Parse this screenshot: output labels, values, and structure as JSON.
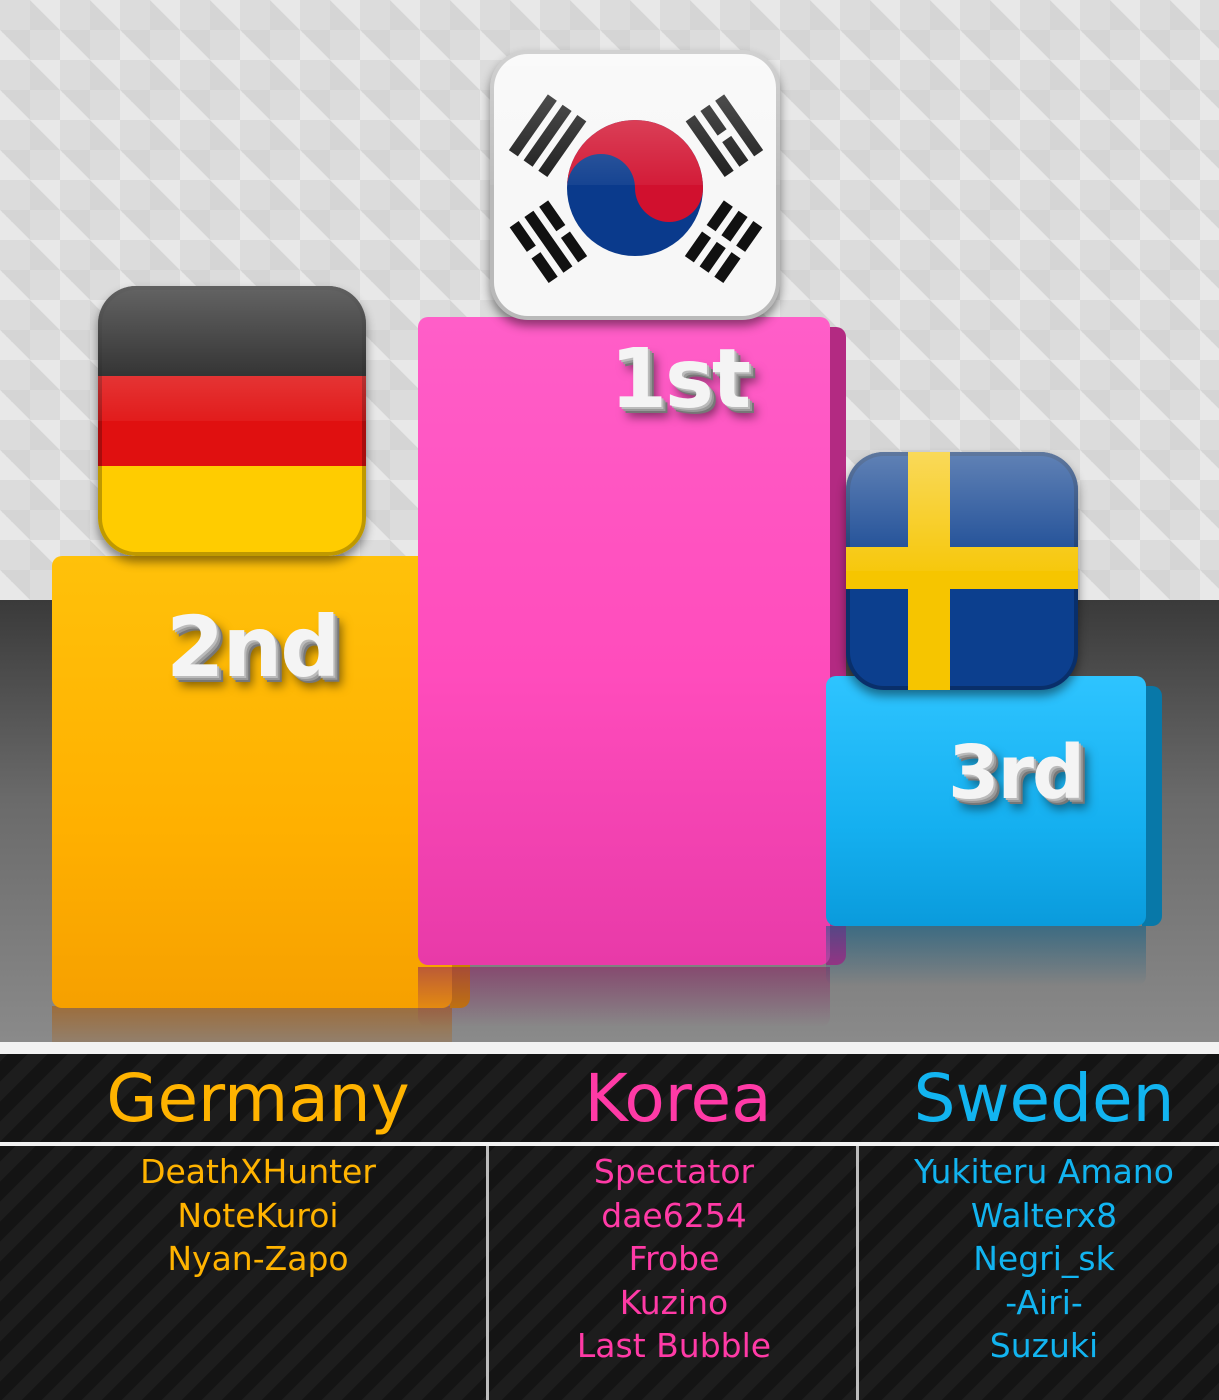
{
  "podium": {
    "first": {
      "label": "1st",
      "country": "Korea",
      "flag": "south-korea-flag-icon",
      "color": "#ff4cbc"
    },
    "second": {
      "label": "2nd",
      "country": "Germany",
      "flag": "germany-flag-icon",
      "color": "#ffb000"
    },
    "third": {
      "label": "3rd",
      "country": "Sweden",
      "flag": "sweden-flag-icon",
      "color": "#15b0f0"
    }
  },
  "teams": [
    {
      "name": "Germany",
      "color": "#ffb300",
      "members": [
        "DeathXHunter",
        "NoteKuroi",
        "Nyan-Zapo"
      ]
    },
    {
      "name": "Korea",
      "color": "#ff3aa6",
      "members": [
        "Spectator",
        "dae6254",
        "Frobe",
        "Kuzino",
        "Last Bubble"
      ]
    },
    {
      "name": "Sweden",
      "color": "#12b4f0",
      "members": [
        "Yukiteru Amano",
        "Walterx8",
        "Negri_sk",
        "-Airi-",
        "Suzuki"
      ]
    }
  ]
}
